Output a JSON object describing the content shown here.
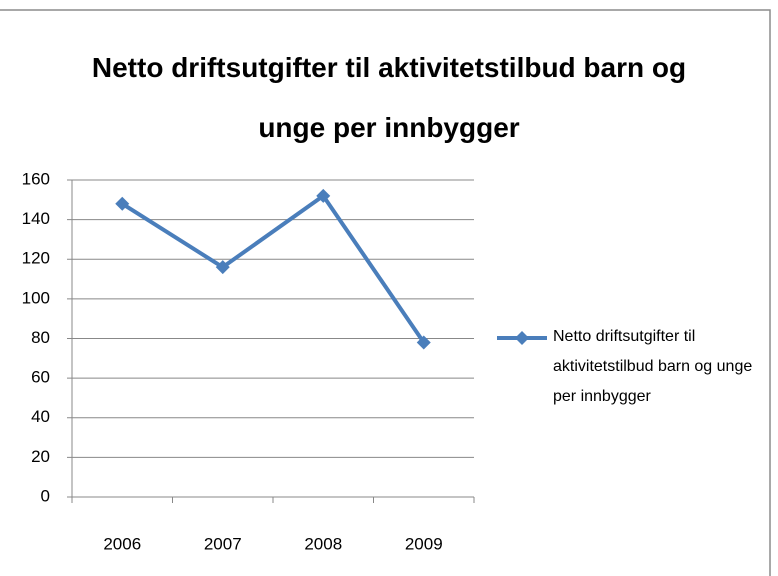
{
  "chart_data": {
    "type": "line",
    "title": "Netto driftsutgifter til aktivitetstilbud barn og unge per innbygger",
    "categories": [
      "2006",
      "2007",
      "2008",
      "2009"
    ],
    "series": [
      {
        "name": "Netto driftsutgifter til aktivitetstilbud barn og unge per innbygger",
        "color": "#4a7ebb",
        "values": [
          148,
          116,
          152,
          78
        ]
      }
    ],
    "ylim": [
      0,
      160
    ],
    "yticks": [
      0,
      20,
      40,
      60,
      80,
      100,
      120,
      140,
      160
    ],
    "grid": true,
    "legend": "right"
  }
}
